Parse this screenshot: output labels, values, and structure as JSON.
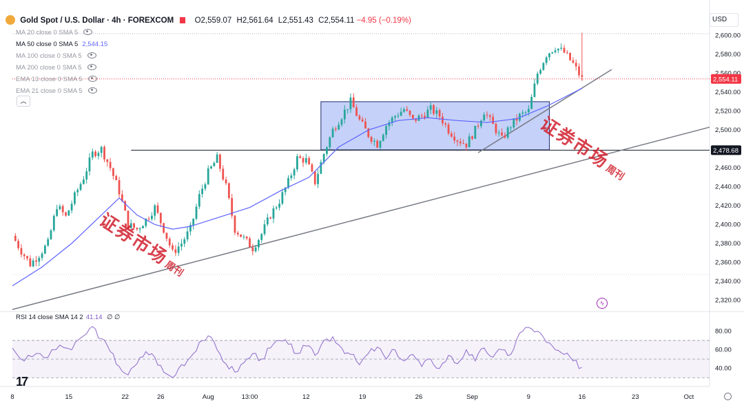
{
  "header": {
    "symbol": "Gold Spot / U.S. Dollar · 4h · FOREXCOM",
    "open": "O2,559.07",
    "high": "H2,561.64",
    "low": "L2,551.43",
    "close": "C2,554.11",
    "change": "−4.95 (−0.19%)"
  },
  "indicators": [
    {
      "label": "MA 20 close 0 SMA 5",
      "value": ""
    },
    {
      "label": "MA 50 close 0 SMA 5",
      "value": "2,544.15"
    },
    {
      "label": "MA 100 close 0 SMA 5",
      "value": ""
    },
    {
      "label": "MA 200 close 0 SMA 5",
      "value": ""
    },
    {
      "label": "EMA 13 close 0 SMA 5",
      "value": ""
    },
    {
      "label": "EMA 21 close 0 SMA 5",
      "value": ""
    }
  ],
  "currency": "USD",
  "collapse_icon": "chevron-up-icon",
  "rsi": {
    "label": "RSI 14 close SMA 14 2",
    "value": "41.14",
    "extra": "∅ ∅"
  },
  "price_labels": {
    "current": "2,554.11",
    "level": "2,478.68"
  },
  "watermark": {
    "main": "证券市场",
    "side": "周刊"
  },
  "colors": {
    "up": "#26a69a",
    "down": "#ef5350",
    "ma50": "#5b62ff",
    "rsi": "#9575cd",
    "box_fill": "#b2c2f5",
    "box_stroke": "#1b2a6b",
    "current": "#f23645",
    "trend": "#787b86"
  },
  "chart_data": {
    "type": "candlestick",
    "title": "Gold Spot / U.S. Dollar · 4h · FOREXCOM",
    "ylim": [
      2310,
      2610
    ],
    "yticks": [
      2320,
      2340,
      2360,
      2380,
      2400,
      2420,
      2440,
      2460,
      2480,
      2500,
      2520,
      2540,
      2560,
      2580,
      2600
    ],
    "xticks": [
      "8",
      "15",
      "22",
      "26",
      "Aug",
      "13:00",
      "12",
      "19",
      "26",
      "Sep",
      "9",
      "16",
      "23",
      "Oct"
    ],
    "price_path": [
      [
        0,
        2388
      ],
      [
        3,
        2372
      ],
      [
        6,
        2358
      ],
      [
        9,
        2368
      ],
      [
        12,
        2380
      ],
      [
        15,
        2420
      ],
      [
        18,
        2408
      ],
      [
        21,
        2430
      ],
      [
        24,
        2450
      ],
      [
        27,
        2475
      ],
      [
        30,
        2480
      ],
      [
        33,
        2460
      ],
      [
        36,
        2435
      ],
      [
        39,
        2400
      ],
      [
        42,
        2395
      ],
      [
        45,
        2405
      ],
      [
        48,
        2418
      ],
      [
        51,
        2395
      ],
      [
        54,
        2370
      ],
      [
        57,
        2380
      ],
      [
        60,
        2395
      ],
      [
        63,
        2430
      ],
      [
        66,
        2455
      ],
      [
        69,
        2470
      ],
      [
        72,
        2440
      ],
      [
        75,
        2395
      ],
      [
        78,
        2385
      ],
      [
        81,
        2375
      ],
      [
        84,
        2390
      ],
      [
        87,
        2410
      ],
      [
        90,
        2425
      ],
      [
        93,
        2445
      ],
      [
        96,
        2470
      ],
      [
        99,
        2468
      ],
      [
        102,
        2445
      ],
      [
        105,
        2475
      ],
      [
        108,
        2500
      ],
      [
        111,
        2515
      ],
      [
        114,
        2530
      ],
      [
        117,
        2510
      ],
      [
        120,
        2495
      ],
      [
        123,
        2485
      ],
      [
        126,
        2505
      ],
      [
        129,
        2515
      ],
      [
        132,
        2522
      ],
      [
        135,
        2510
      ],
      [
        138,
        2515
      ],
      [
        141,
        2522
      ],
      [
        144,
        2515
      ],
      [
        147,
        2500
      ],
      [
        150,
        2490
      ],
      [
        153,
        2485
      ],
      [
        156,
        2500
      ],
      [
        159,
        2520
      ],
      [
        162,
        2505
      ],
      [
        165,
        2490
      ],
      [
        168,
        2505
      ],
      [
        171,
        2515
      ],
      [
        174,
        2520
      ],
      [
        177,
        2560
      ],
      [
        180,
        2580
      ],
      [
        183,
        2588
      ],
      [
        186,
        2582
      ],
      [
        189,
        2570
      ],
      [
        192,
        2554.11
      ]
    ],
    "ma50": [
      [
        0,
        2335
      ],
      [
        10,
        2355
      ],
      [
        20,
        2380
      ],
      [
        30,
        2410
      ],
      [
        36,
        2428
      ],
      [
        42,
        2410
      ],
      [
        48,
        2400
      ],
      [
        54,
        2395
      ],
      [
        60,
        2398
      ],
      [
        70,
        2408
      ],
      [
        80,
        2418
      ],
      [
        90,
        2435
      ],
      [
        100,
        2450
      ],
      [
        110,
        2482
      ],
      [
        120,
        2500
      ],
      [
        130,
        2510
      ],
      [
        140,
        2513
      ],
      [
        150,
        2510
      ],
      [
        160,
        2508
      ],
      [
        170,
        2512
      ],
      [
        180,
        2525
      ],
      [
        192,
        2544.15
      ]
    ],
    "horizontal_level": 2478.68,
    "consolidation_box": {
      "x0": 104,
      "x1": 181,
      "y0": 2479,
      "y1": 2530
    },
    "trendlines": [
      {
        "from": [
          0,
          2310
        ],
        "to": [
          235,
          2503
        ]
      },
      {
        "from": [
          157,
          2476
        ],
        "to": [
          202,
          2564
        ]
      }
    ],
    "rsi": {
      "ylim": [
        25,
        90
      ],
      "levels": [
        70,
        50,
        30
      ],
      "yticks": [
        40,
        60,
        80
      ],
      "values": [
        [
          0,
          62
        ],
        [
          4,
          48
        ],
        [
          8,
          56
        ],
        [
          12,
          52
        ],
        [
          16,
          65
        ],
        [
          20,
          60
        ],
        [
          24,
          75
        ],
        [
          27,
          85
        ],
        [
          30,
          72
        ],
        [
          33,
          58
        ],
        [
          36,
          42
        ],
        [
          39,
          33
        ],
        [
          42,
          45
        ],
        [
          45,
          58
        ],
        [
          48,
          52
        ],
        [
          51,
          36
        ],
        [
          54,
          30
        ],
        [
          57,
          44
        ],
        [
          60,
          52
        ],
        [
          63,
          68
        ],
        [
          66,
          75
        ],
        [
          69,
          60
        ],
        [
          72,
          45
        ],
        [
          75,
          36
        ],
        [
          78,
          46
        ],
        [
          81,
          56
        ],
        [
          84,
          50
        ],
        [
          87,
          62
        ],
        [
          90,
          70
        ],
        [
          93,
          66
        ],
        [
          96,
          56
        ],
        [
          99,
          64
        ],
        [
          102,
          54
        ],
        [
          105,
          70
        ],
        [
          108,
          74
        ],
        [
          111,
          62
        ],
        [
          114,
          55
        ],
        [
          117,
          44
        ],
        [
          120,
          56
        ],
        [
          123,
          63
        ],
        [
          126,
          50
        ],
        [
          129,
          60
        ],
        [
          132,
          48
        ],
        [
          135,
          55
        ],
        [
          138,
          42
        ],
        [
          141,
          50
        ],
        [
          144,
          40
        ],
        [
          147,
          54
        ],
        [
          150,
          45
        ],
        [
          153,
          60
        ],
        [
          156,
          48
        ],
        [
          159,
          62
        ],
        [
          162,
          52
        ],
        [
          165,
          60
        ],
        [
          168,
          55
        ],
        [
          171,
          78
        ],
        [
          174,
          84
        ],
        [
          177,
          80
        ],
        [
          180,
          68
        ],
        [
          183,
          60
        ],
        [
          186,
          55
        ],
        [
          189,
          48
        ],
        [
          192,
          41.14
        ]
      ]
    }
  }
}
